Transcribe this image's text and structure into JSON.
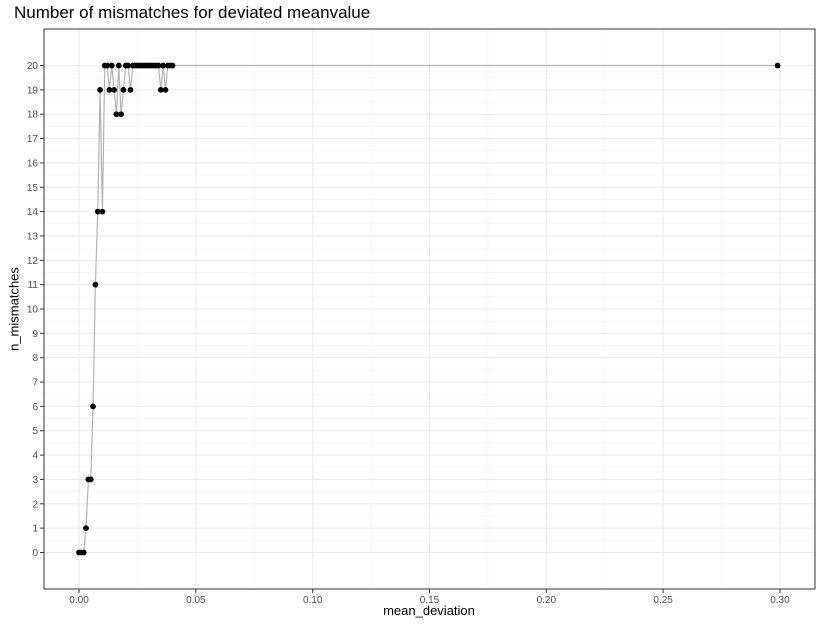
{
  "chart_data": {
    "type": "scatter",
    "title": "Number of mismatches for deviated meanvalue",
    "xlabel": "mean_deviation",
    "ylabel": "n_mismatches",
    "xlim": [
      -0.015,
      0.315
    ],
    "ylim": [
      -1.5,
      21.5
    ],
    "x_ticks": [
      "0.00",
      "0.05",
      "0.10",
      "0.15",
      "0.20",
      "0.25",
      "0.30"
    ],
    "x_tick_values": [
      0,
      0.05,
      0.1,
      0.15,
      0.2,
      0.25,
      0.3
    ],
    "y_ticks": [
      "0",
      "1",
      "2",
      "3",
      "4",
      "5",
      "6",
      "7",
      "8",
      "9",
      "10",
      "11",
      "12",
      "13",
      "14",
      "15",
      "16",
      "17",
      "18",
      "19",
      "20"
    ],
    "y_tick_values": [
      0,
      1,
      2,
      3,
      4,
      5,
      6,
      7,
      8,
      9,
      10,
      11,
      12,
      13,
      14,
      15,
      16,
      17,
      18,
      19,
      20
    ],
    "grid": true,
    "line_color": "#b3b3b3",
    "point_color": "#000000",
    "x": [
      0,
      0.001,
      0.002,
      0.003,
      0.004,
      0.005,
      0.006,
      0.007,
      0.008,
      0.009,
      0.01,
      0.011,
      0.012,
      0.013,
      0.014,
      0.015,
      0.016,
      0.017,
      0.018,
      0.019,
      0.02,
      0.021,
      0.022,
      0.023,
      0.024,
      0.025,
      0.026,
      0.027,
      0.028,
      0.029,
      0.03,
      0.031,
      0.032,
      0.033,
      0.034,
      0.035,
      0.036,
      0.037,
      0.038,
      0.039,
      0.04,
      "...",
      0.299
    ],
    "y": [
      0,
      0,
      0,
      1,
      3,
      3,
      6,
      11,
      14,
      19,
      14,
      20,
      20,
      19,
      20,
      19,
      18,
      20,
      18,
      19,
      20,
      20,
      19,
      20,
      20,
      20,
      20,
      20,
      20,
      20,
      20,
      20,
      20,
      20,
      20,
      19,
      20,
      19,
      20,
      20,
      20,
      "...",
      20
    ],
    "tail_note_x_start": 0.041,
    "tail_note_x_end": 0.299,
    "tail_note_step": 0.001,
    "tail_value": 20
  }
}
